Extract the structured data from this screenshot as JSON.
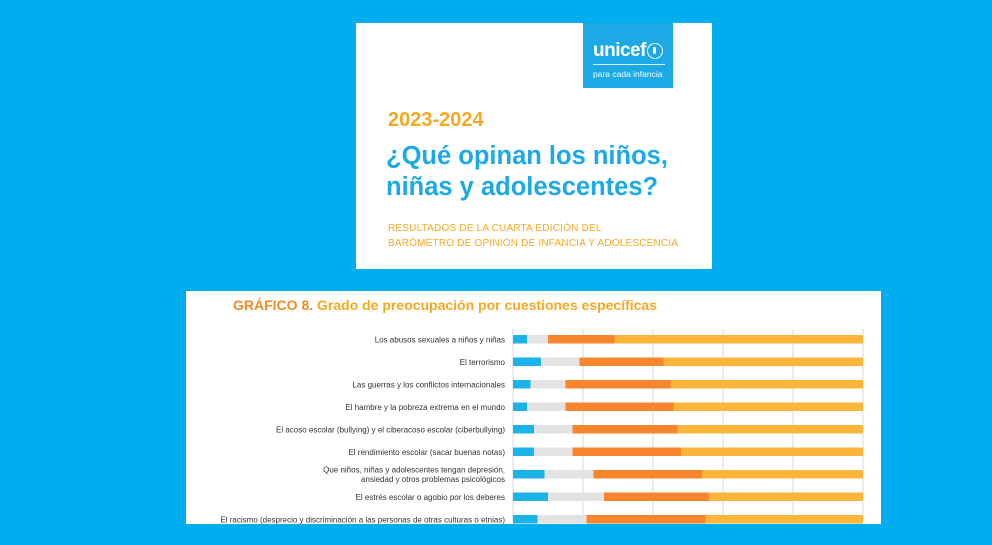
{
  "cover": {
    "logo_word": "unicef",
    "logo_tagline": "para cada infancia",
    "year": "2023-2024",
    "title_line1": "¿Qué opinan los niños,",
    "title_line2": "niñas y adolescentes?",
    "subtitle_line1": "RESULTADOS DE LA CUARTA EDICIÓN DEL",
    "subtitle_line2": "BARÓMETRO DE OPINIÓN DE INFANCIA Y ADOLESCENCIA"
  },
  "colors": {
    "background": "#00adef",
    "unicef_blue": "#1ca9e6",
    "cover_accent": "#f7a823"
  },
  "chart_data": {
    "type": "bar",
    "stacked": true,
    "orientation": "horizontal",
    "title_lead": "GRÁFICO 8.",
    "title_rest": " Grado de preocupación por cuestiones específicas",
    "xlim": [
      0,
      100
    ],
    "categories": [
      [
        "Los abusos sexuales a niños y niñas"
      ],
      [
        "El terrorismo"
      ],
      [
        "Las guerras y los conflictos internacionales"
      ],
      [
        "El hambre y la pobreza extrema en el mundo"
      ],
      [
        "El acoso escolar (bullying) y el ciberacoso escolar (ciberbullying)"
      ],
      [
        "El rendimiento escolar (sacar buenas notas)"
      ],
      [
        "Que niños, niñas y adolescentes tengan depresión,",
        "ansiedad y otros problemas psicológicos"
      ],
      [
        "El estrés escolar o agobio por los deberes"
      ],
      [
        "El racismo (desprecio y discriminación a las personas de otras culturas o etnias)"
      ]
    ],
    "series": [
      {
        "name": "segment-1",
        "color": "#1cb3e8",
        "values": [
          4,
          8,
          5,
          4,
          6,
          6,
          9,
          10,
          7
        ]
      },
      {
        "name": "segment-2",
        "color": "#e3e3e3",
        "values": [
          6,
          11,
          10,
          11,
          11,
          11,
          14,
          16,
          14
        ]
      },
      {
        "name": "segment-3",
        "color": "#f7852d",
        "values": [
          19,
          24,
          30,
          31,
          30,
          31,
          31,
          30,
          34
        ]
      },
      {
        "name": "segment-4",
        "color": "#fbb53b",
        "values": [
          71,
          57,
          55,
          54,
          53,
          52,
          46,
          44,
          45
        ]
      }
    ]
  }
}
